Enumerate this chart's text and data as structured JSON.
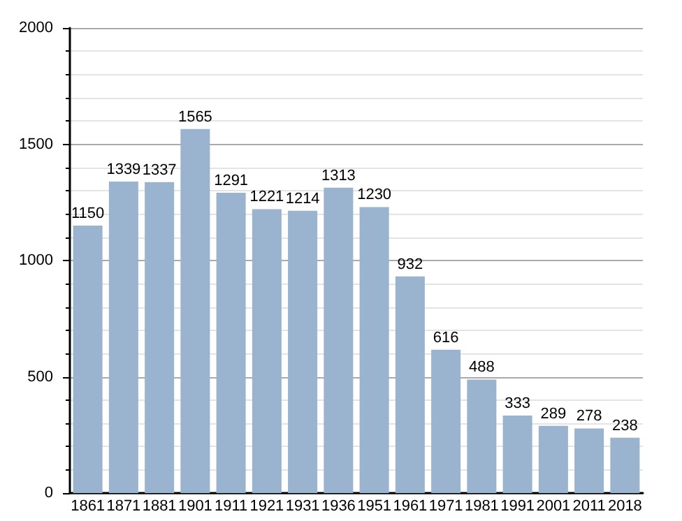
{
  "chart_data": {
    "type": "bar",
    "categories": [
      "1861",
      "1871",
      "1881",
      "1901",
      "1911",
      "1921",
      "1931",
      "1936",
      "1951",
      "1961",
      "1971",
      "1981",
      "1991",
      "2001",
      "2011",
      "2018"
    ],
    "values": [
      1150,
      1339,
      1337,
      1565,
      1291,
      1221,
      1214,
      1313,
      1230,
      932,
      616,
      488,
      333,
      289,
      278,
      238
    ],
    "color": "#9ab3cf",
    "ylim": [
      0,
      2000
    ],
    "yticks": [
      0,
      500,
      1000,
      1500,
      2000
    ],
    "grid": "y",
    "data_labels": true
  }
}
